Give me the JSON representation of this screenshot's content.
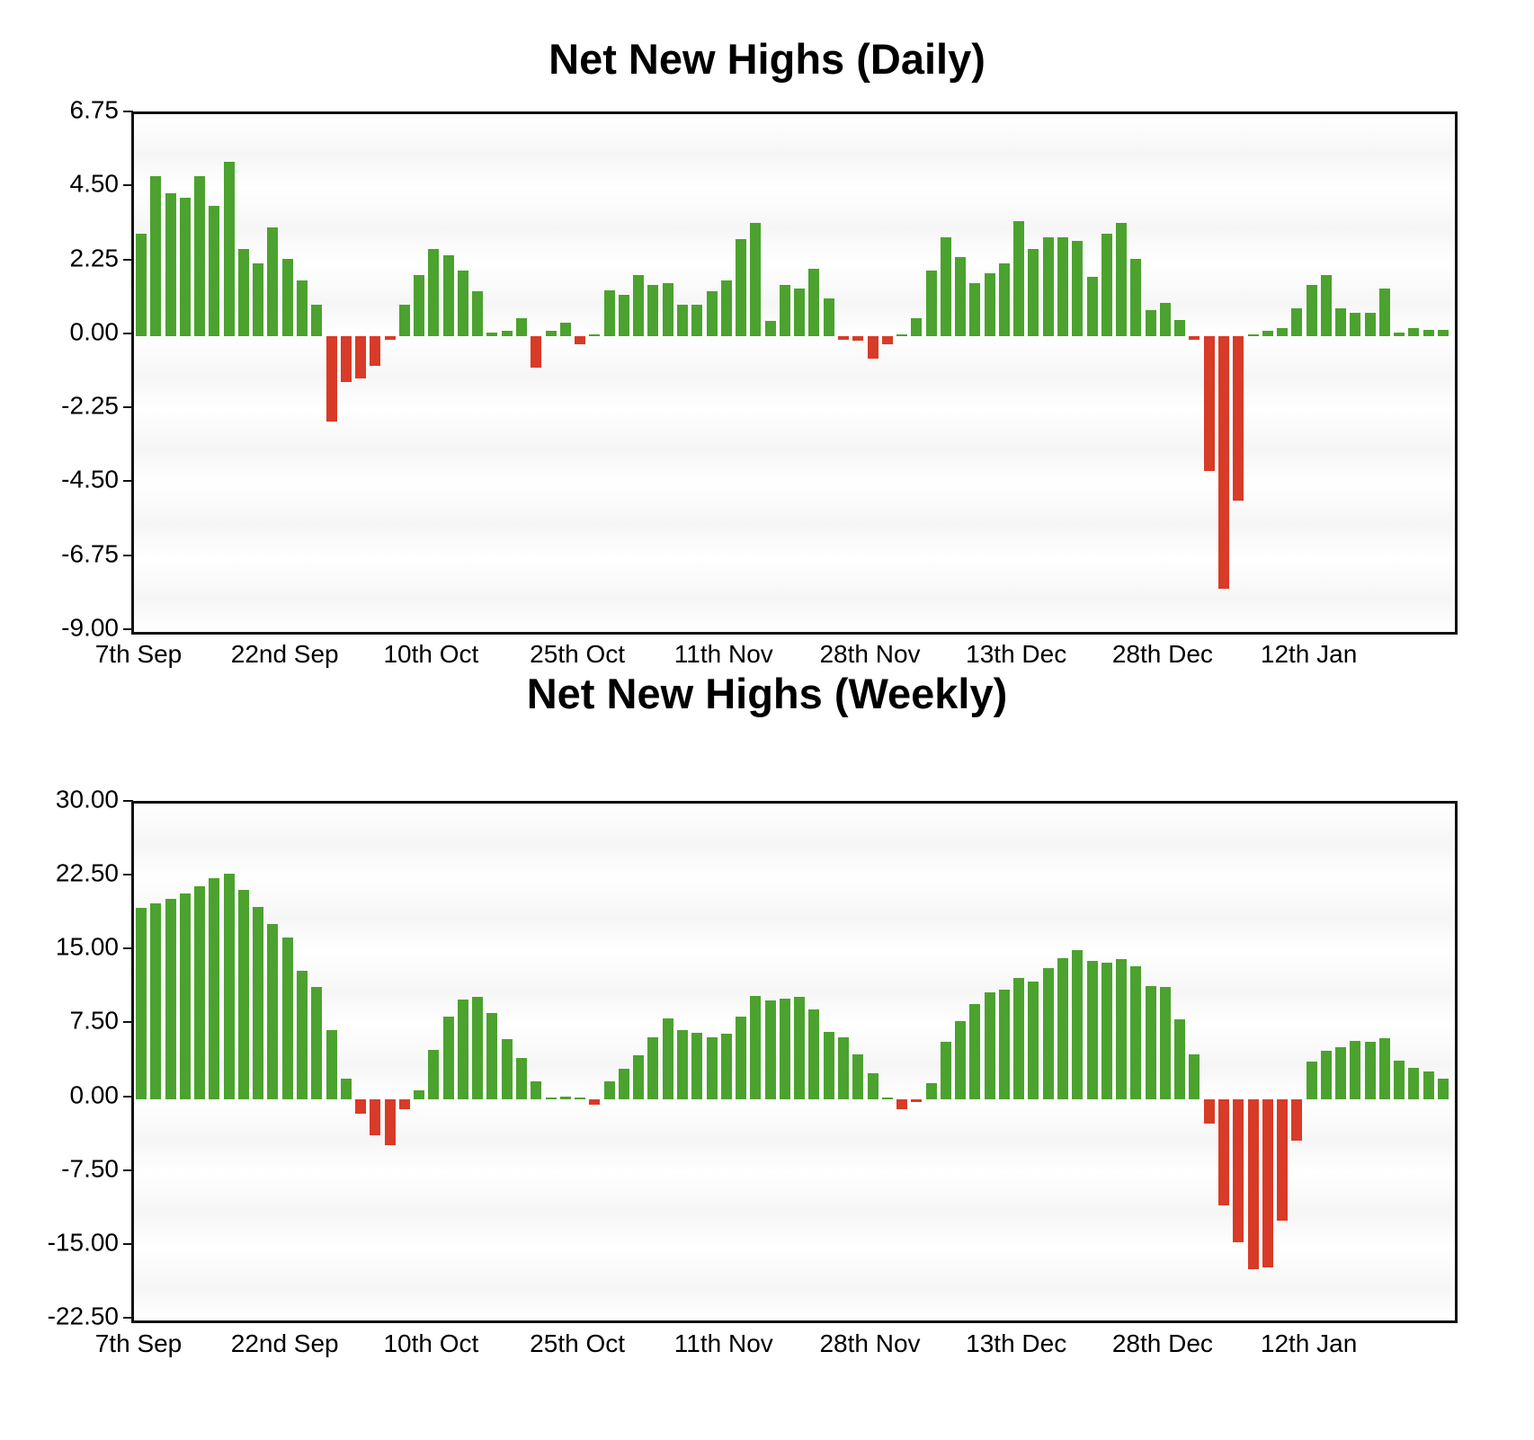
{
  "colors": {
    "positive_bar": "#4ca22e",
    "negative_bar": "#d83b27",
    "grid_dots": "#3a3a3a",
    "plot_border": "#111111",
    "text": "#000000"
  },
  "chart_data": [
    {
      "type": "bar",
      "title": "Net New Highs (Daily)",
      "xlabel": "",
      "ylabel": "",
      "ylim": [
        -9.0,
        6.75
      ],
      "y_tick_step": 2.25,
      "y_tick_labels": [
        "6.75",
        "4.50",
        "2.25",
        "0.00",
        "-2.25",
        "-4.50",
        "-6.75",
        "-9.00"
      ],
      "x_tick_labels": [
        "7th Sep",
        "22nd Sep",
        "10th Oct",
        "25th Oct",
        "11th Nov",
        "28th Nov",
        "13th Dec",
        "28th Dec",
        "12th Jan"
      ],
      "x_ticks_every_n_bars": 10,
      "grid": "horizontal-dotted",
      "legend": "none",
      "values": [
        3.1,
        4.85,
        4.35,
        4.2,
        4.85,
        3.95,
        5.3,
        2.65,
        2.2,
        3.3,
        2.35,
        1.7,
        0.95,
        -2.6,
        -1.4,
        -1.3,
        -0.9,
        -0.12,
        0.95,
        1.85,
        2.65,
        2.45,
        2.0,
        1.35,
        0.1,
        0.15,
        0.55,
        -0.95,
        0.15,
        0.4,
        -0.25,
        0.05,
        1.4,
        1.25,
        1.85,
        1.55,
        1.6,
        0.95,
        0.95,
        1.35,
        1.7,
        2.95,
        3.45,
        0.45,
        1.55,
        1.45,
        2.05,
        1.15,
        -0.1,
        -0.15,
        -0.7,
        -0.25,
        0.05,
        0.55,
        2.0,
        3.0,
        2.4,
        1.6,
        1.9,
        2.2,
        3.5,
        2.65,
        3.0,
        3.0,
        2.9,
        1.8,
        3.1,
        3.45,
        2.35,
        0.8,
        1.0,
        0.5,
        -0.12,
        -4.1,
        -7.7,
        -5.0,
        0.05,
        0.15,
        0.25,
        0.85,
        1.55,
        1.85,
        0.85,
        0.7,
        0.7,
        1.45,
        0.1,
        0.25,
        0.2,
        0.2
      ]
    },
    {
      "type": "bar",
      "title": "Net New Highs (Weekly)",
      "xlabel": "",
      "ylabel": "",
      "ylim": [
        -22.5,
        30.0
      ],
      "y_tick_step": 7.5,
      "y_tick_labels": [
        "30.00",
        "22.50",
        "15.00",
        "7.50",
        "0.00",
        "-7.50",
        "-15.00",
        "-22.50"
      ],
      "x_tick_labels": [
        "7th Sep",
        "22nd Sep",
        "10th Oct",
        "25th Oct",
        "11th Nov",
        "28th Nov",
        "13th Dec",
        "28th Dec",
        "12th Jan"
      ],
      "x_ticks_every_n_bars": 10,
      "grid": "horizontal-dotted",
      "legend": "none",
      "values": [
        19.4,
        19.9,
        20.3,
        20.9,
        21.6,
        22.4,
        22.9,
        21.2,
        19.5,
        17.8,
        16.4,
        13.0,
        11.4,
        7.0,
        2.1,
        -1.5,
        -3.7,
        -4.7,
        -1.0,
        0.9,
        5.0,
        8.4,
        10.1,
        10.4,
        8.7,
        6.1,
        4.2,
        1.8,
        0.1,
        0.25,
        0.05,
        -0.55,
        1.8,
        3.1,
        4.4,
        6.3,
        8.2,
        7.0,
        6.7,
        6.3,
        6.6,
        8.4,
        10.5,
        10.0,
        10.2,
        10.4,
        9.1,
        6.8,
        6.3,
        4.5,
        2.6,
        0.1,
        -1.0,
        -0.3,
        1.6,
        5.8,
        7.9,
        9.6,
        10.8,
        11.1,
        12.3,
        11.9,
        13.3,
        14.3,
        15.1,
        14.0,
        13.8,
        14.2,
        13.5,
        11.5,
        11.4,
        8.1,
        4.5,
        -2.5,
        -10.8,
        -14.6,
        -17.3,
        -17.1,
        -12.4,
        -4.2,
        3.8,
        4.9,
        5.3,
        5.9,
        5.8,
        6.2,
        3.9,
        3.2,
        2.75,
        2.1
      ]
    }
  ]
}
